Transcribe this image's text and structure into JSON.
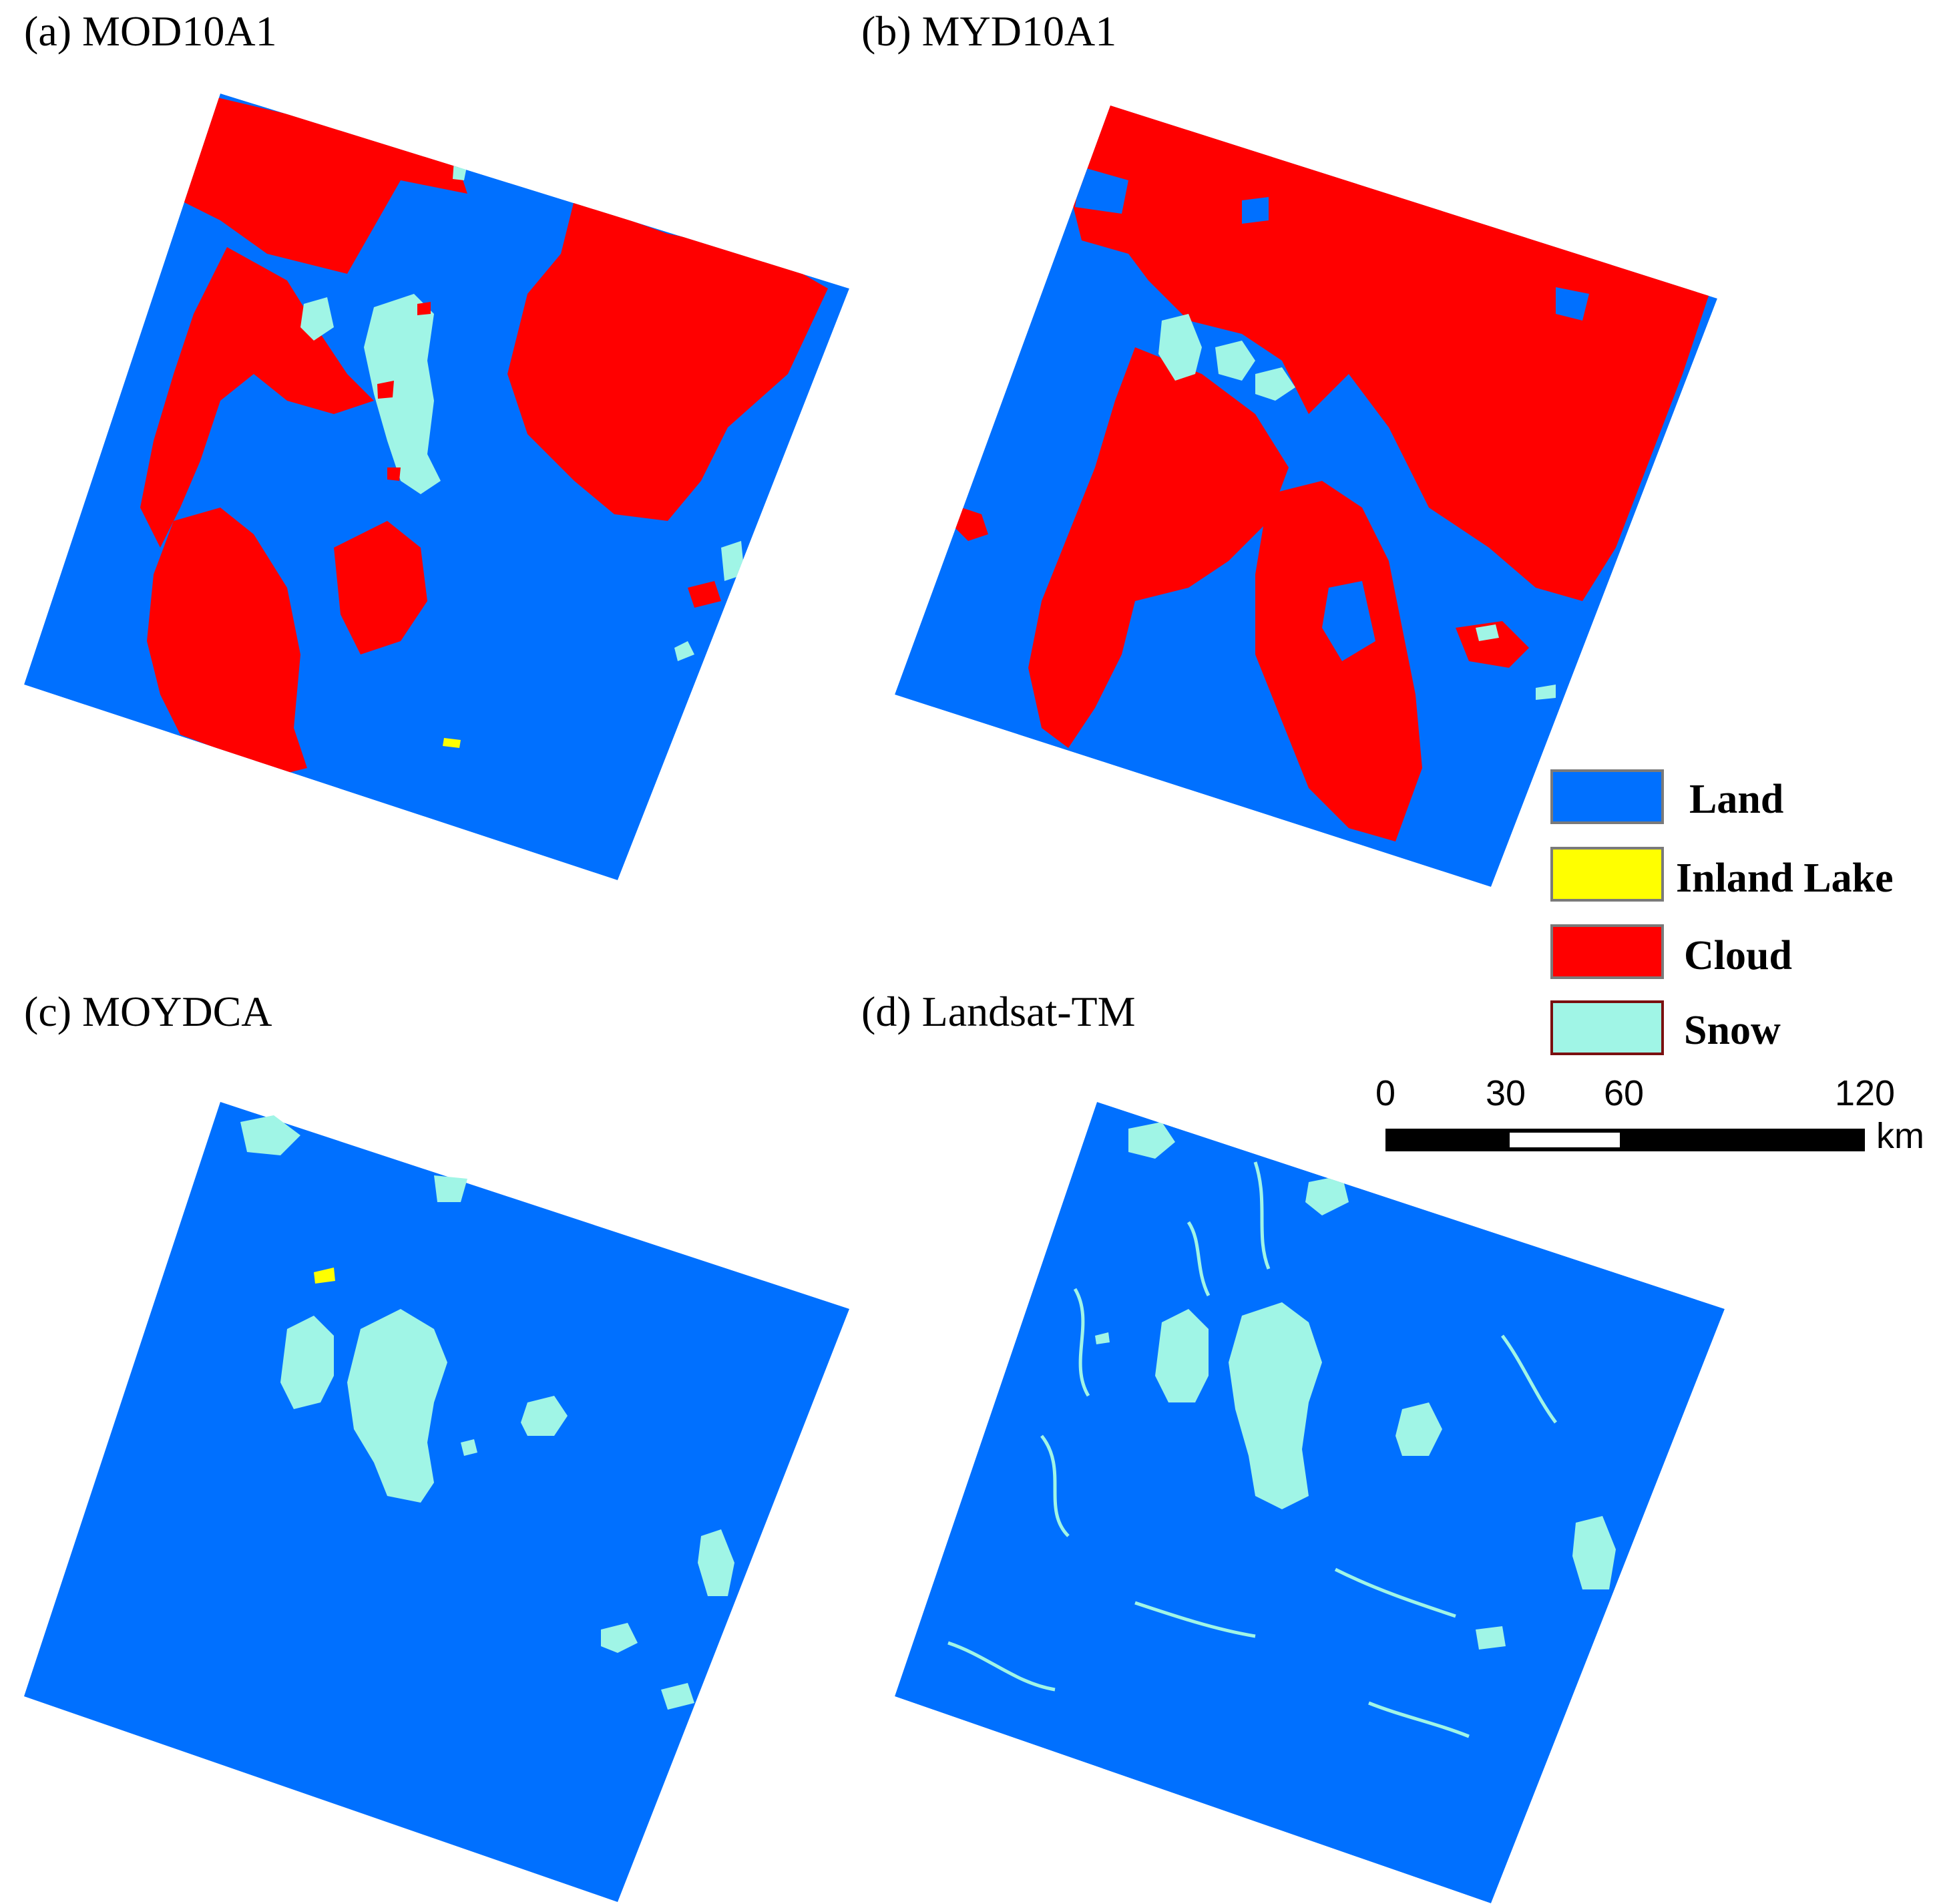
{
  "panels": [
    {
      "label": "(a) MOD10A1"
    },
    {
      "label": "(b) MYD10A1"
    },
    {
      "label": "(c) MOYDCA"
    },
    {
      "label": "(d) Landsat-TM"
    }
  ],
  "legend": [
    {
      "label": "Land",
      "color": "#0070ff"
    },
    {
      "label": "Inland Lake",
      "color": "#ffff00"
    },
    {
      "label": "Cloud",
      "color": "#ff0000"
    },
    {
      "label": "Snow",
      "color": "#a0f5e6"
    }
  ],
  "scale_bar": {
    "ticks": [
      "0",
      "30",
      "60",
      "120"
    ],
    "unit": "km"
  }
}
